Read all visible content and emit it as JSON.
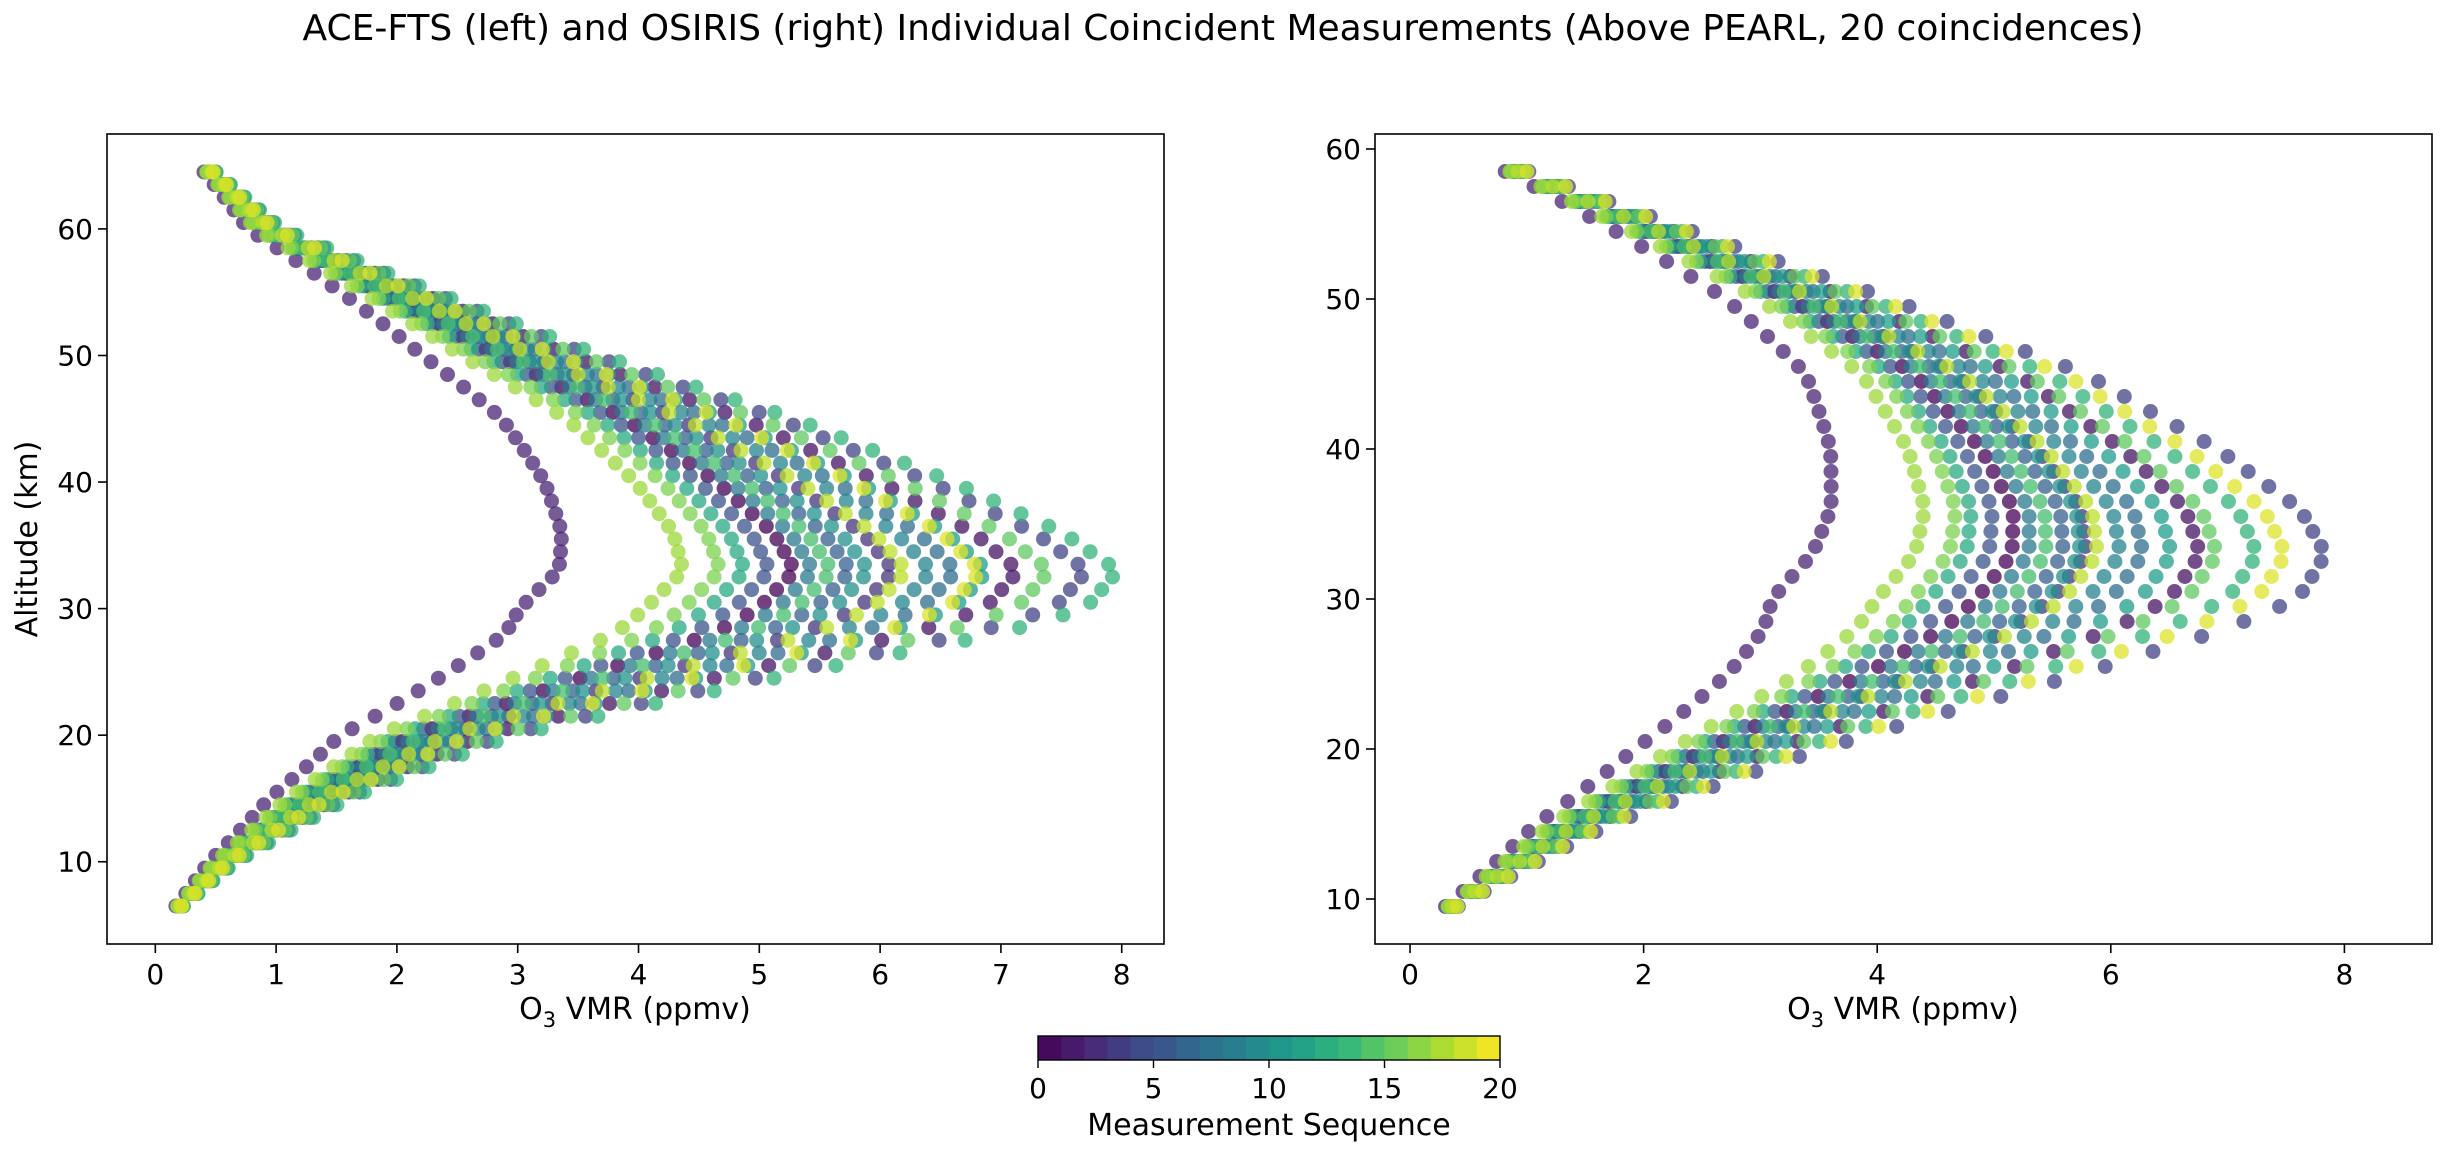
{
  "figure": {
    "title": "ACE-FTS (left) and OSIRIS (right) Individual Coincident Measurements (Above PEARL, 20 coincidences)"
  },
  "colorbar": {
    "label": "Measurement Sequence",
    "range": [
      0,
      20
    ],
    "ticks": [
      0,
      5,
      10,
      15,
      20
    ],
    "tick_labels": [
      "0",
      "5",
      "10",
      "15",
      "20"
    ],
    "colormap": "viridis",
    "levels": 20
  },
  "chart_data": [
    {
      "type": "scatter",
      "title": "",
      "xlabel": "O3 VMR (ppmv)",
      "xlabel_main": "O",
      "xlabel_sub": "3",
      "xlabel_rest": " VMR (ppmv)",
      "ylabel": "Altitude (km)",
      "xlim": [
        -0.4,
        8.35
      ],
      "ylim": [
        3.5,
        67.5
      ],
      "xticks": [
        0,
        1,
        2,
        3,
        4,
        5,
        6,
        7,
        8
      ],
      "xtick_labels": [
        "0",
        "1",
        "2",
        "3",
        "4",
        "5",
        "6",
        "7",
        "8"
      ],
      "yticks": [
        10,
        20,
        30,
        40,
        50,
        60
      ],
      "ytick_labels": [
        "10",
        "20",
        "30",
        "40",
        "50",
        "60"
      ],
      "grid": false,
      "colormap": "viridis",
      "color_range": [
        0,
        20
      ],
      "alt_range": [
        6.5,
        64.5
      ],
      "alt_step": 1.0,
      "profile_anchors": {
        "altitude": [
          6.5,
          10,
          15,
          20,
          25,
          28,
          30,
          33,
          36,
          40,
          45,
          50,
          55,
          60,
          64.5
        ],
        "o3_vmr": [
          0.2,
          0.55,
          1.25,
          2.2,
          3.8,
          4.8,
          5.2,
          5.5,
          5.3,
          4.8,
          4.0,
          2.9,
          1.9,
          0.9,
          0.45
        ]
      },
      "series": [
        {
          "sequence": 0,
          "factor": 0.96
        },
        {
          "sequence": 1,
          "factor": 1.32
        },
        {
          "sequence": 2,
          "factor": 0.58
        },
        {
          "sequence": 3,
          "factor": 1.12
        },
        {
          "sequence": 4,
          "factor": 1.43
        },
        {
          "sequence": 5,
          "factor": 0.92
        },
        {
          "sequence": 6,
          "factor": 1.05
        },
        {
          "sequence": 7,
          "factor": 1.22
        },
        {
          "sequence": 8,
          "factor": 0.99
        },
        {
          "sequence": 9,
          "factor": 1.18
        },
        {
          "sequence": 10,
          "factor": 1.08
        },
        {
          "sequence": 11,
          "factor": 1.27
        },
        {
          "sequence": 12,
          "factor": 0.88
        },
        {
          "sequence": 13,
          "factor": 1.48
        },
        {
          "sequence": 14,
          "factor": 1.02
        },
        {
          "sequence": 15,
          "factor": 1.37
        },
        {
          "sequence": 16,
          "factor": 0.84
        },
        {
          "sequence": 17,
          "factor": 0.78
        },
        {
          "sequence": 18,
          "factor": 1.14
        },
        {
          "sequence": 19,
          "factor": 1.26
        }
      ]
    },
    {
      "type": "scatter",
      "title": "",
      "xlabel": "O3 VMR (ppmv)",
      "xlabel_main": "O",
      "xlabel_sub": "3",
      "xlabel_rest": " VMR (ppmv)",
      "ylabel": "",
      "xlim": [
        -0.3,
        8.75
      ],
      "ylim": [
        7.0,
        61.0
      ],
      "xticks": [
        0,
        2,
        4,
        6,
        8
      ],
      "xtick_labels": [
        "0",
        "2",
        "4",
        "6",
        "8"
      ],
      "yticks": [
        10,
        20,
        30,
        40,
        50,
        60
      ],
      "ytick_labels": [
        "10",
        "20",
        "30",
        "40",
        "50",
        "60"
      ],
      "grid": false,
      "colormap": "viridis",
      "color_range": [
        0,
        20
      ],
      "alt_range": [
        9.5,
        58.5
      ],
      "alt_step": 1.0,
      "profile_anchors": {
        "altitude": [
          9.5,
          12,
          15,
          20,
          25,
          28,
          30,
          33,
          36,
          40,
          45,
          50,
          55,
          58.5
        ],
        "o3_vmr": [
          0.35,
          0.8,
          1.35,
          2.6,
          4.0,
          4.7,
          5.0,
          5.3,
          5.3,
          5.0,
          4.4,
          3.3,
          1.9,
          0.9
        ]
      },
      "series": [
        {
          "sequence": 0,
          "factor": 0.97
        },
        {
          "sequence": 1,
          "factor": 1.3
        },
        {
          "sequence": 2,
          "factor": 0.62
        },
        {
          "sequence": 3,
          "factor": 1.1
        },
        {
          "sequence": 4,
          "factor": 1.52
        },
        {
          "sequence": 5,
          "factor": 0.93
        },
        {
          "sequence": 6,
          "factor": 1.06
        },
        {
          "sequence": 7,
          "factor": 1.2
        },
        {
          "sequence": 8,
          "factor": 1.0
        },
        {
          "sequence": 9,
          "factor": 1.16
        },
        {
          "sequence": 10,
          "factor": 1.09
        },
        {
          "sequence": 11,
          "factor": 1.25
        },
        {
          "sequence": 12,
          "factor": 0.89
        },
        {
          "sequence": 13,
          "factor": 1.4
        },
        {
          "sequence": 14,
          "factor": 1.03
        },
        {
          "sequence": 15,
          "factor": 1.33
        },
        {
          "sequence": 16,
          "factor": 0.86
        },
        {
          "sequence": 17,
          "factor": 0.8
        },
        {
          "sequence": 18,
          "factor": 1.12
        },
        {
          "sequence": 19,
          "factor": 1.45
        }
      ]
    }
  ]
}
